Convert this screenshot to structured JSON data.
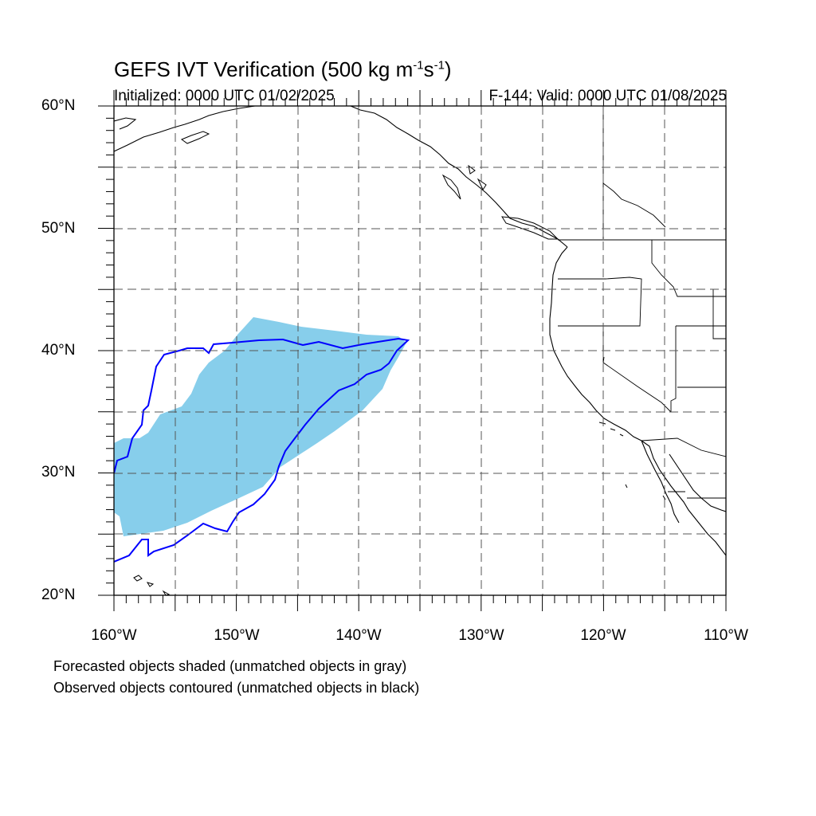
{
  "title": {
    "main": "GEFS IVT Verification (500 kg m",
    "exp1": "-1",
    "mid": "s",
    "exp2": "-1",
    "end": ")"
  },
  "init_text": "Initialized: 0000 UTC 01/02/2025",
  "valid_text": "F-144: Valid: 0000 UTC 01/08/2025",
  "lat_labels": [
    "60°N",
    "50°N",
    "40°N",
    "30°N",
    "20°N"
  ],
  "lon_labels": [
    "160°W",
    "150°W",
    "140°W",
    "130°W",
    "120°W",
    "110°W"
  ],
  "footnotes": [
    "Forecasted objects shaded (unmatched objects in gray)",
    "Observed objects contoured (unmatched objects in black)"
  ],
  "colors": {
    "forecast_fill": "#87CEEB",
    "observed_contour": "#0000FF",
    "coastline": "#000000",
    "grid": "#555555"
  },
  "map": {
    "lon_range": [
      -160,
      -110
    ],
    "lat_range": [
      20,
      60
    ],
    "grid_spacing_deg": 5,
    "grid_style": "dashed",
    "label_interval_deg": 10
  }
}
